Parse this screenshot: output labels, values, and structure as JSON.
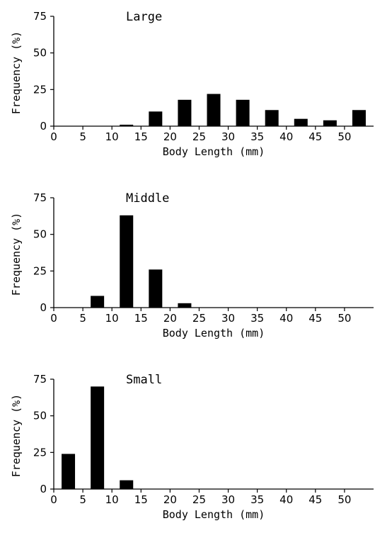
{
  "chart_data": [
    {
      "type": "bar",
      "title": "Large",
      "xlabel": "Body Length (mm)",
      "ylabel": "Frequency (%)",
      "xlim": [
        0,
        55
      ],
      "ylim": [
        0,
        75
      ],
      "x_ticks": [
        "0",
        "5",
        "10",
        "15",
        "20",
        "25",
        "30",
        "35",
        "40",
        "45",
        "50"
      ],
      "y_ticks": [
        "0",
        "25",
        "50",
        "75"
      ],
      "categories": [
        "0-5",
        "5-10",
        "10-15",
        "15-20",
        "20-25",
        "25-30",
        "30-35",
        "35-40",
        "40-45",
        "45-50",
        "50-55"
      ],
      "bin_centers": [
        2.5,
        7.5,
        12.5,
        17.5,
        22.5,
        27.5,
        32.5,
        37.5,
        42.5,
        47.5,
        52.5
      ],
      "values": [
        0,
        0,
        1,
        10,
        18,
        22,
        18,
        11,
        5,
        4,
        11
      ]
    },
    {
      "type": "bar",
      "title": "Middle",
      "xlabel": "Body Length (mm)",
      "ylabel": "Frequency (%)",
      "xlim": [
        0,
        55
      ],
      "ylim": [
        0,
        75
      ],
      "x_ticks": [
        "0",
        "5",
        "10",
        "15",
        "20",
        "25",
        "30",
        "35",
        "40",
        "45",
        "50"
      ],
      "y_ticks": [
        "0",
        "25",
        "50",
        "75"
      ],
      "categories": [
        "0-5",
        "5-10",
        "10-15",
        "15-20",
        "20-25",
        "25-30",
        "30-35",
        "35-40",
        "40-45",
        "45-50",
        "50-55"
      ],
      "bin_centers": [
        2.5,
        7.5,
        12.5,
        17.5,
        22.5,
        27.5,
        32.5,
        37.5,
        42.5,
        47.5,
        52.5
      ],
      "values": [
        0,
        8,
        63,
        26,
        3,
        0,
        0,
        0,
        0,
        0,
        0
      ]
    },
    {
      "type": "bar",
      "title": "Small",
      "xlabel": "Body Length (mm)",
      "ylabel": "Frequency (%)",
      "xlim": [
        0,
        55
      ],
      "ylim": [
        0,
        75
      ],
      "x_ticks": [
        "0",
        "5",
        "10",
        "15",
        "20",
        "25",
        "30",
        "35",
        "40",
        "45",
        "50"
      ],
      "y_ticks": [
        "0",
        "25",
        "50",
        "75"
      ],
      "categories": [
        "0-5",
        "5-10",
        "10-15",
        "15-20",
        "20-25",
        "25-30",
        "30-35",
        "35-40",
        "40-45",
        "45-50",
        "50-55"
      ],
      "bin_centers": [
        2.5,
        7.5,
        12.5,
        17.5,
        22.5,
        27.5,
        32.5,
        37.5,
        42.5,
        47.5,
        52.5
      ],
      "values": [
        24,
        70,
        6,
        0,
        0,
        0,
        0,
        0,
        0,
        0,
        0
      ]
    }
  ]
}
